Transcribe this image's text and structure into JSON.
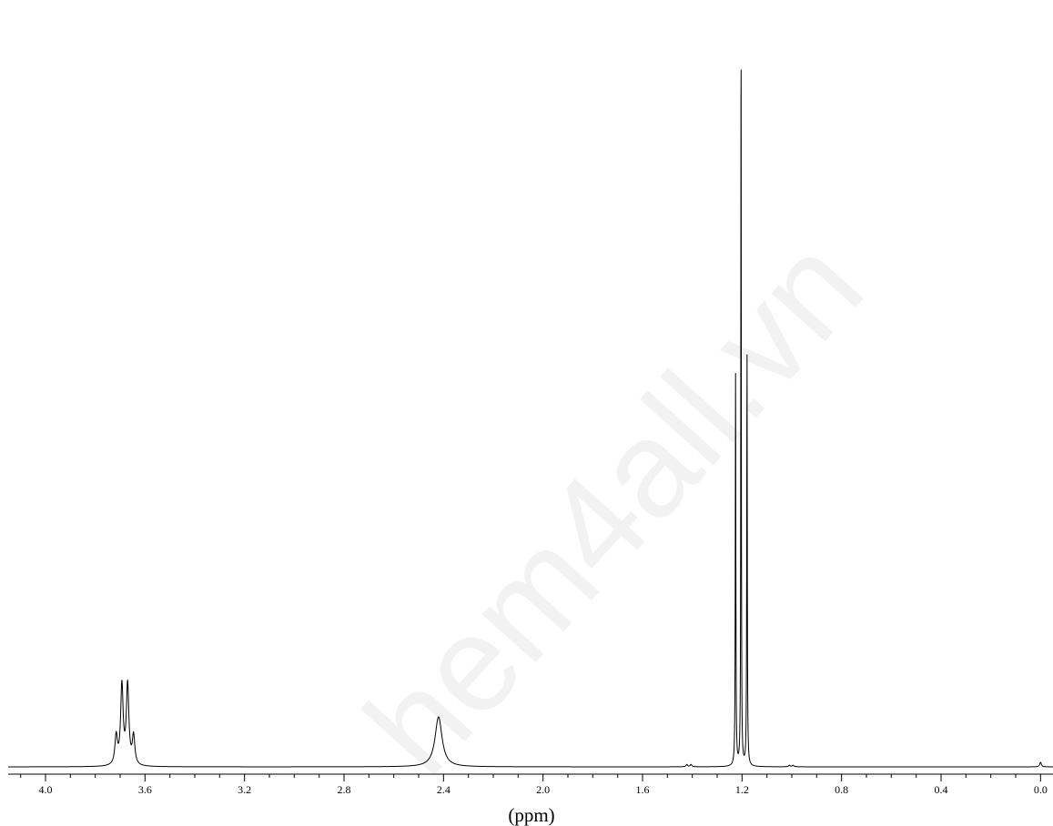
{
  "chart_data": {
    "type": "line",
    "title": "",
    "xlabel": "(ppm)",
    "ylabel": "",
    "x_reversed": true,
    "xlim": [
      4.15,
      -0.05
    ],
    "ylim": [
      0,
      1.0
    ],
    "x_ticks": [
      4.0,
      3.6,
      3.2,
      2.8,
      2.4,
      2.0,
      1.6,
      1.2,
      0.8,
      0.4,
      0.0
    ],
    "x_tick_labels": [
      "4.0",
      "3.6",
      "3.2",
      "2.8",
      "2.4",
      "2.0",
      "1.6",
      "1.2",
      "0.8",
      "0.4",
      "0.0"
    ],
    "minor_tick_step": 0.1,
    "grid": false,
    "legend": "none",
    "baseline": 0.0,
    "peaks": [
      {
        "center": 3.716,
        "height": 0.038,
        "width": 0.006
      },
      {
        "center": 3.693,
        "height": 0.105,
        "width": 0.006
      },
      {
        "center": 3.67,
        "height": 0.105,
        "width": 0.006
      },
      {
        "center": 3.646,
        "height": 0.038,
        "width": 0.006
      },
      {
        "center": 2.42,
        "height": 0.066,
        "width": 0.017
      },
      {
        "center": 1.422,
        "height": 0.003,
        "width": 0.004
      },
      {
        "center": 1.405,
        "height": 0.003,
        "width": 0.004
      },
      {
        "center": 1.226,
        "height": 0.52,
        "width": 0.0013
      },
      {
        "center": 1.204,
        "height": 0.985,
        "width": 0.0011
      },
      {
        "center": 1.18,
        "height": 0.545,
        "width": 0.0013
      },
      {
        "center": 1.01,
        "height": 0.002,
        "width": 0.004
      },
      {
        "center": 0.995,
        "height": 0.002,
        "width": 0.004
      },
      {
        "center": 0.0,
        "height": 0.006,
        "width": 0.004
      }
    ],
    "watermark_text": "hem4all.vn"
  }
}
